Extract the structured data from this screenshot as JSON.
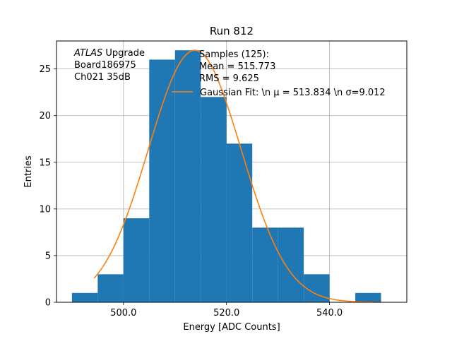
{
  "chart_data": {
    "type": "bar",
    "title": "Run 812",
    "xlabel": "Energy [ADC Counts]",
    "ylabel": "Entries",
    "xlim": [
      487.0,
      555.0
    ],
    "ylim": [
      0,
      28
    ],
    "grid": true,
    "x_ticks": [
      500,
      520,
      540
    ],
    "x_tick_labels": [
      "500.0",
      "520.0",
      "540.0"
    ],
    "y_ticks": [
      0,
      5,
      10,
      15,
      20,
      25
    ],
    "y_tick_labels": [
      "0",
      "5",
      "10",
      "15",
      "20",
      "25"
    ],
    "bar_color": "#1f77b4",
    "fit_color": "#ff7f0e",
    "bins": [
      {
        "x0": 490.0,
        "x1": 495.0,
        "count": 1
      },
      {
        "x0": 495.0,
        "x1": 500.0,
        "count": 3
      },
      {
        "x0": 500.0,
        "x1": 505.0,
        "count": 9
      },
      {
        "x0": 505.0,
        "x1": 510.0,
        "count": 26
      },
      {
        "x0": 510.0,
        "x1": 515.0,
        "count": 27
      },
      {
        "x0": 515.0,
        "x1": 520.0,
        "count": 22
      },
      {
        "x0": 520.0,
        "x1": 525.0,
        "count": 17
      },
      {
        "x0": 525.0,
        "x1": 530.0,
        "count": 8
      },
      {
        "x0": 530.0,
        "x1": 535.0,
        "count": 8
      },
      {
        "x0": 535.0,
        "x1": 540.0,
        "count": 3
      },
      {
        "x0": 540.0,
        "x1": 545.0,
        "count": 0
      },
      {
        "x0": 545.0,
        "x1": 550.0,
        "count": 1
      }
    ],
    "fit": {
      "mu": 513.834,
      "sigma": 9.012,
      "amplitude": 27.0,
      "x_range": [
        494.3,
        550.0
      ]
    },
    "annotation_lines": [
      {
        "italic": "ATLAS",
        "rest": " Upgrade"
      },
      {
        "italic": "",
        "rest": " Board186975"
      },
      {
        "italic": "",
        "rest": " Ch021 35dB"
      }
    ],
    "legend": {
      "placement": "top-right",
      "samples_lines": [
        "Samples (125):",
        " Mean = 515.773",
        " RMS = 9.625"
      ],
      "fit_label": "Gaussian Fit: \\n μ = 513.834 \\n σ=9.012"
    }
  }
}
